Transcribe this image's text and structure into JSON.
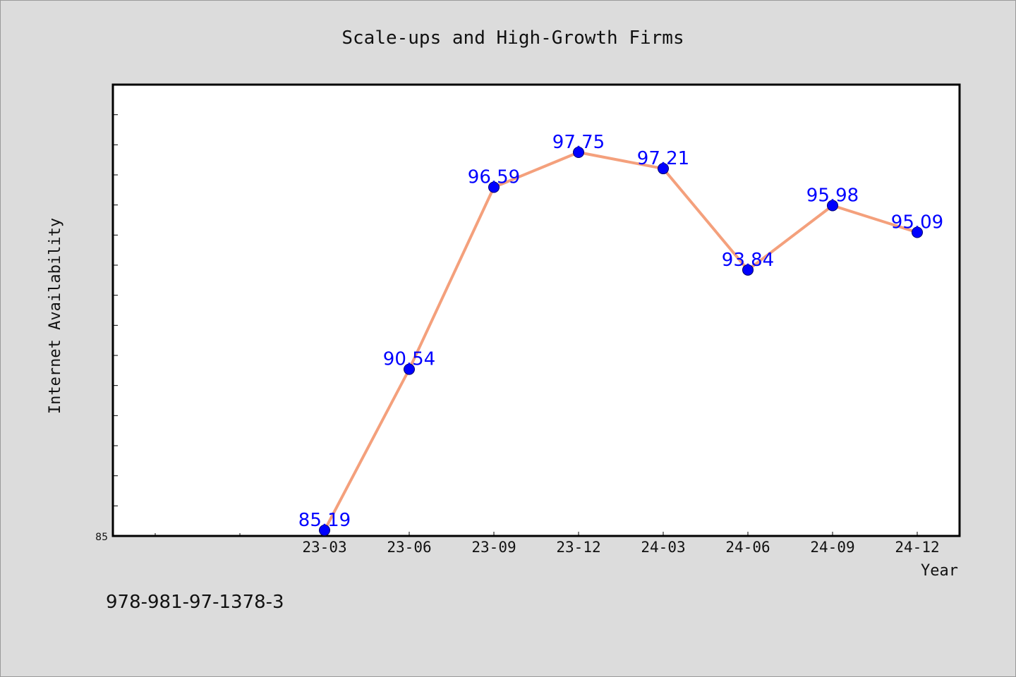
{
  "footer": {
    "isbn": "978-981-97-1378-3"
  },
  "colors": {
    "line": "#f4a07c",
    "marker": "#0000ff",
    "label": "#0000ff",
    "background": "#dcdcdc",
    "plot_bg": "#ffffff"
  },
  "chart_data": {
    "type": "line",
    "title": "Scale-ups and High-Growth Firms",
    "xlabel": "Year",
    "ylabel": "Internet Availability",
    "categories": [
      "23-03",
      "23-06",
      "23-09",
      "23-12",
      "24-03",
      "24-06",
      "24-09",
      "24-12"
    ],
    "series": [
      {
        "values": [
          85.19,
          90.54,
          96.59,
          97.75,
          97.21,
          93.84,
          95.98,
          95.09
        ]
      }
    ],
    "ylim": [
      85,
      100
    ],
    "yticks_labeled": [
      "85"
    ],
    "grid": false,
    "legend": "none",
    "marker": "circle"
  }
}
